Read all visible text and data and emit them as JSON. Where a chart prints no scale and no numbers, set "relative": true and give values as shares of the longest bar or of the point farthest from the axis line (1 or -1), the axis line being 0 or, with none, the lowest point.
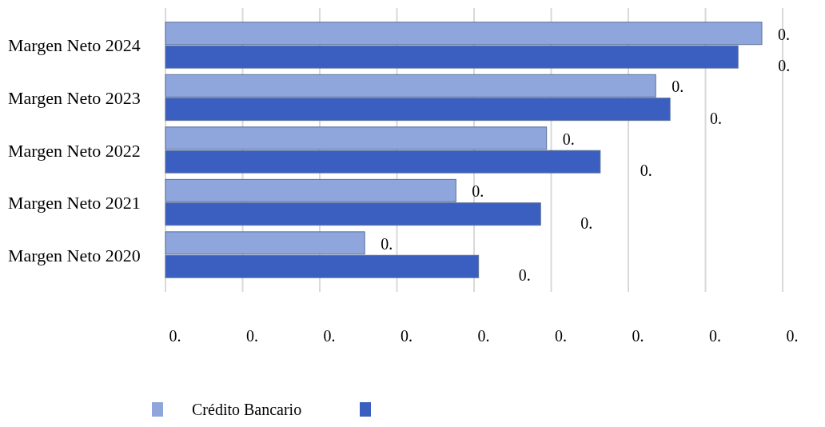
{
  "chart_data": {
    "type": "bar",
    "orientation": "horizontal",
    "relative": true,
    "categories": [
      "Margen Neto 2024",
      "Margen Neto 2023",
      "Margen Neto 2022",
      "Margen Neto 2021",
      "Margen Neto 2020"
    ],
    "series": [
      {
        "name": "Crédito Bancario",
        "color": "#8ea6dc",
        "values": [
          1.0,
          0.822,
          0.639,
          0.487,
          0.334
        ]
      },
      {
        "color": "#3a5fc0",
        "values": [
          0.96,
          0.846,
          0.729,
          0.629,
          0.525
        ]
      }
    ],
    "annotations": [
      "0.",
      "0.",
      "0.",
      "0.",
      "0.",
      "0.",
      "0.",
      "0.",
      "0.",
      {
        "text": "0.",
        "x": 1.0,
        "y": "Margen Neto 2024"
      },
      {
        "text": "0.",
        "x": 0.96,
        "y": "Margen Neto 2024"
      },
      {
        "text": "0.",
        "x": 0.822,
        "y": "Margen Neto 2023"
      },
      {
        "text": "0.",
        "x": 0.846,
        "y": "Margen Neto 2023"
      },
      {
        "text": "0.",
        "x": 0.639,
        "y": "Margen Neto 2022"
      },
      {
        "text": "0.",
        "x": 0.729,
        "y": "Margen Neto 2022"
      },
      {
        "text": "0.",
        "x": 0.487,
        "y": "Margen Neto 2021"
      },
      {
        "text": "0.",
        "x": 0.629,
        "y": "Margen Neto 2021"
      },
      {
        "text": "0.",
        "x": 0.334,
        "y": "Margen Neto 2020"
      },
      {
        "text": "0.",
        "x": 0.525,
        "y": "Margen Neto 2020"
      }
    ],
    "grid": "x",
    "legend": "bottom"
  }
}
